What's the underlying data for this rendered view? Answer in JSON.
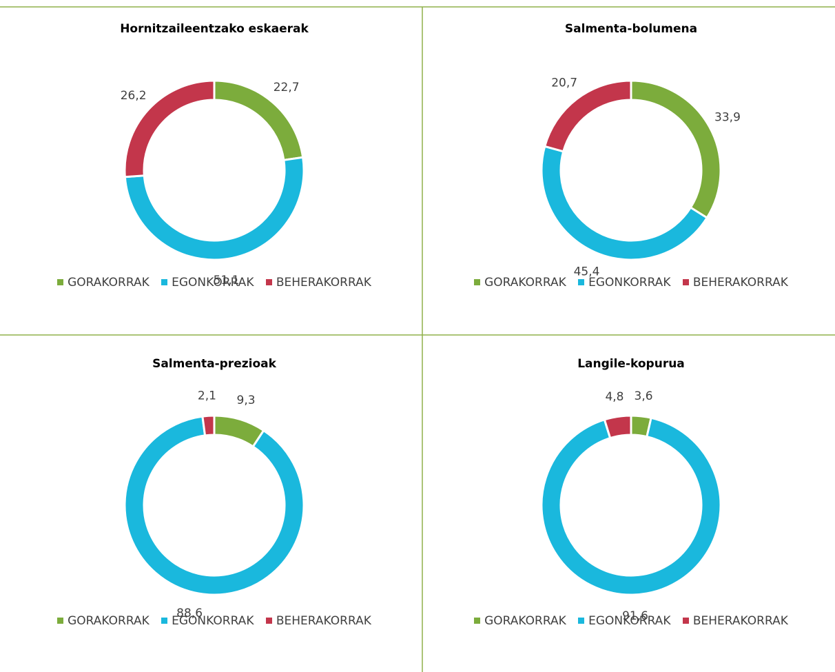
{
  "colors": {
    "grid": "#8fb04a",
    "border": "#ffffff"
  },
  "chart_data": [
    {
      "type": "pie",
      "title": "Hornitzaileentzako eskaerak",
      "categories": [
        "GORAKORRAK",
        "EGONKORRAK",
        "BEHERAKORRAK"
      ],
      "values": [
        22.7,
        51.1,
        26.2
      ],
      "value_labels": [
        "22,7",
        "51,1",
        "26,2"
      ],
      "colors": [
        "#7cac3c",
        "#1ab8dd",
        "#c3364b"
      ],
      "legend": "bottom"
    },
    {
      "type": "pie",
      "title": "Salmenta-bolumena",
      "categories": [
        "GORAKORRAK",
        "EGONKORRAK",
        "BEHERAKORRAK"
      ],
      "values": [
        33.9,
        45.4,
        20.7
      ],
      "value_labels": [
        "33,9",
        "45,4",
        "20,7"
      ],
      "colors": [
        "#7cac3c",
        "#1ab8dd",
        "#c3364b"
      ],
      "legend": "bottom"
    },
    {
      "type": "pie",
      "title": "Salmenta-prezioak",
      "categories": [
        "GORAKORRAK",
        "EGONKORRAK",
        "BEHERAKORRAK"
      ],
      "values": [
        9.3,
        88.6,
        2.1
      ],
      "value_labels": [
        "9,3",
        "88,6",
        "2,1"
      ],
      "colors": [
        "#7cac3c",
        "#1ab8dd",
        "#c3364b"
      ],
      "legend": "bottom"
    },
    {
      "type": "pie",
      "title": "Langile-kopurua",
      "categories": [
        "GORAKORRAK",
        "EGONKORRAK",
        "BEHERAKORRAK"
      ],
      "values": [
        3.6,
        91.6,
        4.8
      ],
      "value_labels": [
        "3,6",
        "91,6",
        "4,8"
      ],
      "colors": [
        "#7cac3c",
        "#1ab8dd",
        "#c3364b"
      ],
      "legend": "bottom"
    }
  ]
}
